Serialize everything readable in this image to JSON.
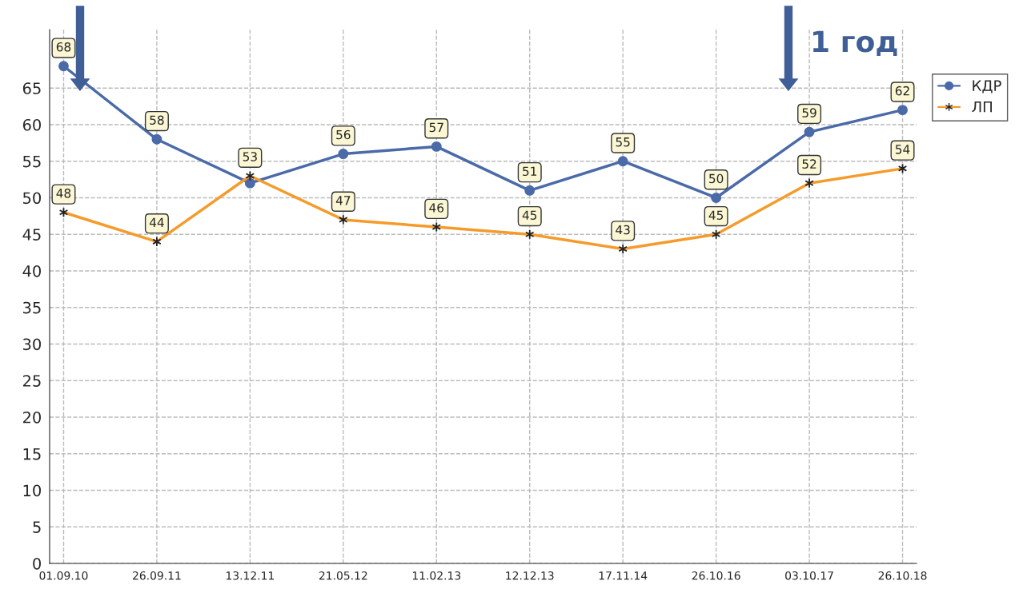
{
  "chart_data": {
    "type": "line",
    "categories": [
      "01.09.10",
      "26.09.11",
      "13.12.11",
      "21.05.12",
      "11.02.13",
      "12.12.13",
      "17.11.14",
      "26.10.16",
      "03.10.17",
      "26.10.18"
    ],
    "series": [
      {
        "name": "КДР",
        "color": "#4a6aa8",
        "marker": "circle",
        "values": [
          68,
          58,
          52,
          56,
          57,
          51,
          55,
          50,
          59,
          62
        ],
        "value_labels": [
          "68",
          "58",
          null,
          "56",
          "57",
          "51",
          "55",
          "50",
          "59",
          "62"
        ]
      },
      {
        "name": "ЛП",
        "color": "#f59b2b",
        "marker": "cross",
        "values": [
          48,
          44,
          53,
          47,
          46,
          45,
          43,
          45,
          52,
          54
        ],
        "value_labels": [
          "48",
          "44",
          "53",
          "47",
          "46",
          "45",
          "43",
          "45",
          "52",
          "54"
        ]
      }
    ],
    "ylim": [
      0,
      73
    ],
    "yticks": [
      0,
      5,
      10,
      15,
      20,
      25,
      30,
      35,
      40,
      45,
      50,
      55,
      60,
      65
    ],
    "grid": true,
    "legend": "top right",
    "line_style": "solid",
    "annotations": [
      "1 год"
    ]
  }
}
